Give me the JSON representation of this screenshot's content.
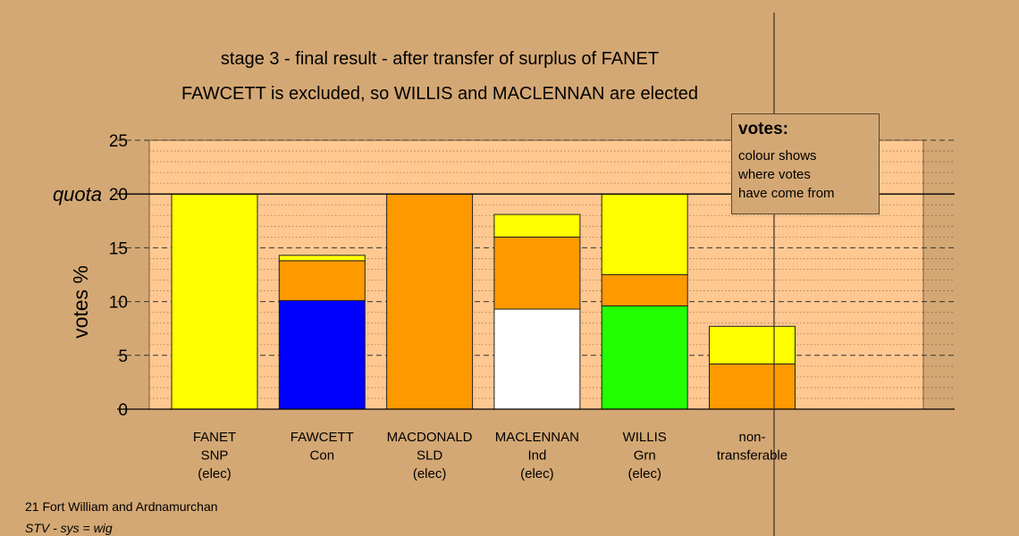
{
  "chart_data": {
    "type": "bar",
    "stacked": true,
    "title": "stage 3 - final result - after transfer of surplus of FANET",
    "subtitle": "FAWCETT is excluded, so WILLIS and MACLENNAN are elected",
    "ylabel": "votes %",
    "ylim": [
      0,
      25
    ],
    "yticks": [
      "0",
      "5",
      "10",
      "15",
      "20",
      "25"
    ],
    "quota": 20,
    "quota_label": "quota",
    "categories": [
      [
        "FANET",
        "SNP",
        "(elec)"
      ],
      [
        "FAWCETT",
        "Con",
        ""
      ],
      [
        "MACDONALD",
        "SLD",
        "(elec)"
      ],
      [
        "MACLENNAN",
        "Ind",
        "(elec)"
      ],
      [
        "WILLIS",
        "Grn",
        "(elec)"
      ],
      [
        "non-",
        "transferable",
        ""
      ]
    ],
    "bars": [
      {
        "segments": [
          {
            "value": 20.0,
            "color": "#ffff00"
          }
        ]
      },
      {
        "segments": [
          {
            "value": 10.1,
            "color": "#0000ff"
          },
          {
            "value": 3.7,
            "color": "#ff9900"
          },
          {
            "value": 0.5,
            "color": "#ffff00"
          }
        ]
      },
      {
        "segments": [
          {
            "value": 20.0,
            "color": "#ff9900"
          }
        ]
      },
      {
        "segments": [
          {
            "value": 9.3,
            "color": "#ffffff"
          },
          {
            "value": 6.7,
            "color": "#ff9900"
          },
          {
            "value": 2.1,
            "color": "#ffff00"
          }
        ]
      },
      {
        "segments": [
          {
            "value": 9.6,
            "color": "#22ff00"
          },
          {
            "value": 2.9,
            "color": "#ff9900"
          },
          {
            "value": 7.5,
            "color": "#ffff00"
          }
        ]
      },
      {
        "segments": [
          {
            "value": 4.2,
            "color": "#ff9900"
          },
          {
            "value": 3.5,
            "color": "#ffff00"
          }
        ]
      }
    ],
    "grid": true,
    "legend_position": "top-right"
  },
  "legend": {
    "title": "votes:",
    "lines": [
      "colour shows",
      "where votes",
      "have come from"
    ]
  },
  "footer": {
    "line1": "21 Fort William and Ardnamurchan",
    "line2": "STV - sys = wig"
  },
  "colors": {
    "background": "#d4a874",
    "plot_area": "#ffc890"
  }
}
